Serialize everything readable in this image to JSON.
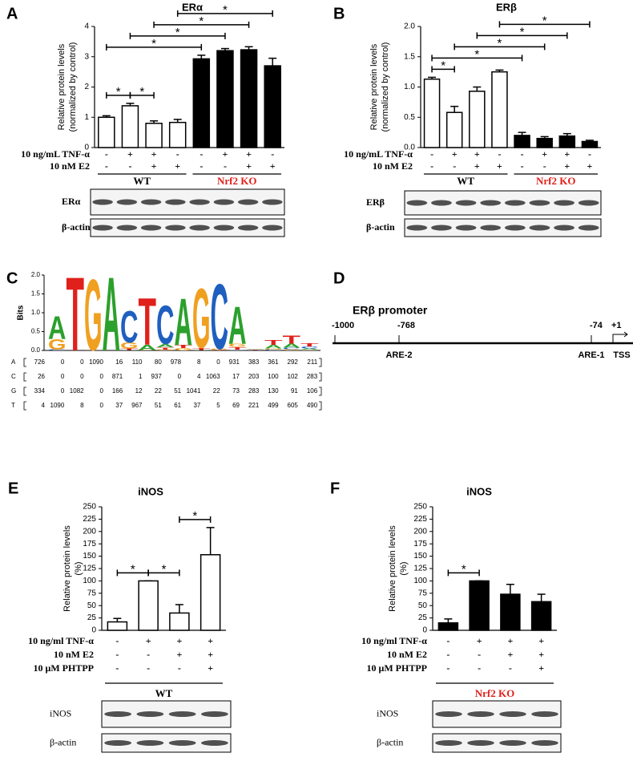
{
  "chart_data": [
    {
      "type": "bar",
      "panel": "A",
      "title": "ERα",
      "ylabel": [
        "Relative protein levels",
        "(normalized by control)"
      ],
      "ylim": [
        0,
        4
      ],
      "yticks": [
        0,
        1,
        2,
        3,
        4
      ],
      "values": [
        1.0,
        1.38,
        0.8,
        0.83,
        2.93,
        3.2,
        3.23,
        2.7
      ],
      "errors": [
        0.05,
        0.08,
        0.08,
        0.1,
        0.12,
        0.07,
        0.1,
        0.25
      ],
      "colors": [
        "#ffffff",
        "#ffffff",
        "#ffffff",
        "#ffffff",
        "#000000",
        "#000000",
        "#000000",
        "#000000"
      ],
      "treatments": [
        {
          "label": "10 ng/mL TNF-α",
          "signs": [
            "-",
            "+",
            "+",
            "-",
            "-",
            "+",
            "+",
            "-"
          ]
        },
        {
          "label": "10 nM E2",
          "signs": [
            "-",
            "-",
            "+",
            "+",
            "-",
            "-",
            "+",
            "+"
          ]
        }
      ],
      "groups": [
        {
          "label": "WT",
          "color": "#000000"
        },
        {
          "label": "Nrf2 KO",
          "color": "#e0201b"
        }
      ],
      "significance": [
        {
          "bars": [
            0,
            1
          ],
          "label": "*"
        },
        {
          "bars": [
            1,
            2
          ],
          "label": "*"
        },
        {
          "bars": [
            0,
            4
          ],
          "label": "*"
        },
        {
          "bars": [
            1,
            5
          ],
          "label": "*"
        },
        {
          "bars": [
            2,
            6
          ],
          "label": "*"
        },
        {
          "bars": [
            3,
            7
          ],
          "label": "*"
        }
      ],
      "blots": [
        "ERα",
        "β-actin"
      ]
    },
    {
      "type": "bar",
      "panel": "B",
      "title": "ERβ",
      "ylabel": [
        "Relative protein levels",
        "(normalized by control)"
      ],
      "ylim": [
        0,
        2
      ],
      "yticks": [
        {
          "value": 0,
          "label": "0.0"
        },
        0.5,
        {
          "value": 1,
          "label": "1.0"
        },
        1.5,
        {
          "value": 2,
          "label": "2.0"
        }
      ],
      "values": [
        1.13,
        0.58,
        0.93,
        1.25,
        0.2,
        0.15,
        0.19,
        0.1
      ],
      "errors": [
        0.03,
        0.1,
        0.07,
        0.03,
        0.05,
        0.03,
        0.04,
        0.02
      ],
      "colors": [
        "#ffffff",
        "#ffffff",
        "#ffffff",
        "#ffffff",
        "#000000",
        "#000000",
        "#000000",
        "#000000"
      ],
      "treatments": [
        {
          "label": "10 ng/mL TNF-α",
          "signs": [
            "-",
            "+",
            "+",
            "-",
            "-",
            "+",
            "+",
            "-"
          ]
        },
        {
          "label": "10 nM E2",
          "signs": [
            "-",
            "-",
            "+",
            "+",
            "-",
            "-",
            "+",
            "+"
          ]
        }
      ],
      "groups": [
        {
          "label": "WT",
          "color": "#000000"
        },
        {
          "label": "Nrf2 KO",
          "color": "#e0201b"
        }
      ],
      "significance": [
        {
          "bars": [
            0,
            1
          ],
          "label": "*"
        },
        {
          "bars": [
            0,
            4
          ],
          "label": "*"
        },
        {
          "bars": [
            1,
            5
          ],
          "label": "*"
        },
        {
          "bars": [
            2,
            6
          ],
          "label": "*"
        },
        {
          "bars": [
            3,
            7
          ],
          "label": "*"
        }
      ],
      "blots": [
        "ERβ",
        "β-actin"
      ]
    },
    {
      "type": "bar",
      "panel": "E",
      "title": "iNOS",
      "ylabel": [
        "Relative protein levels",
        "(%)"
      ],
      "ylim": [
        0,
        250
      ],
      "yticks": [
        0,
        25,
        50,
        75,
        100,
        125,
        150,
        175,
        200,
        225,
        250
      ],
      "values": [
        17,
        100,
        35,
        153
      ],
      "errors": [
        7,
        0,
        17,
        55
      ],
      "colors": [
        "#ffffff",
        "#ffffff",
        "#ffffff",
        "#ffffff"
      ],
      "treatments": [
        {
          "label": "10 ng/ml TNF-α",
          "signs": [
            "-",
            "+",
            "+",
            "+"
          ]
        },
        {
          "label": "10 nM E2",
          "signs": [
            "-",
            "-",
            "+",
            "+"
          ]
        },
        {
          "label": "10 μM PHTPP",
          "signs": [
            "-",
            "-",
            "-",
            "+"
          ]
        }
      ],
      "groups": [
        {
          "label": "WT",
          "color": "#000000"
        }
      ],
      "significance": [
        {
          "bars": [
            0,
            1
          ],
          "label": "*"
        },
        {
          "bars": [
            1,
            2
          ],
          "label": "*"
        },
        {
          "bars": [
            2,
            3
          ],
          "label": "*"
        }
      ],
      "blots": [
        "iNOS",
        "β-actin"
      ]
    },
    {
      "type": "bar",
      "panel": "F",
      "title": "iNOS",
      "ylabel": [
        "Relative protein levels",
        "(%)"
      ],
      "ylim": [
        0,
        250
      ],
      "yticks": [
        0,
        25,
        50,
        75,
        100,
        125,
        150,
        175,
        200,
        225,
        250
      ],
      "values": [
        15,
        100,
        73,
        58
      ],
      "errors": [
        8,
        0,
        20,
        15
      ],
      "colors": [
        "#000000",
        "#000000",
        "#000000",
        "#000000"
      ],
      "treatments": [
        {
          "label": "10 ng/ml TNF-α",
          "signs": [
            "-",
            "+",
            "+",
            "+"
          ]
        },
        {
          "label": "10 nM E2",
          "signs": [
            "-",
            "-",
            "+",
            "+"
          ]
        },
        {
          "label": "10 μM PHTPP",
          "signs": [
            "-",
            "-",
            "-",
            "+"
          ]
        }
      ],
      "groups": [
        {
          "label": "Nrf2 KO",
          "color": "#e0201b"
        }
      ],
      "significance": [
        {
          "bars": [
            0,
            1
          ],
          "label": "*"
        }
      ],
      "blots": [
        "iNOS",
        "β-actin"
      ]
    }
  ],
  "motif": {
    "panel": "C",
    "ylabel": "Bits",
    "yticks": [
      {
        "value": 0,
        "label": "0.0"
      },
      0.5,
      {
        "value": 1,
        "label": "1.0"
      },
      1.5,
      {
        "value": 2,
        "label": "2.0"
      }
    ],
    "rows": [
      {
        "base": "A",
        "color": "#2ca02c",
        "counts": [
          726,
          0,
          0,
          1090,
          16,
          110,
          80,
          978,
          8,
          0,
          931,
          383,
          361,
          292,
          211
        ]
      },
      {
        "base": "C",
        "color": "#1f5fbf",
        "counts": [
          26,
          0,
          0,
          0,
          871,
          1,
          937,
          0,
          4,
          1063,
          17,
          203,
          100,
          102,
          283
        ]
      },
      {
        "base": "G",
        "color": "#f0a020",
        "counts": [
          334,
          0,
          1082,
          0,
          166,
          12,
          22,
          51,
          1041,
          22,
          73,
          283,
          130,
          91,
          106
        ]
      },
      {
        "base": "T",
        "color": "#e0201b",
        "counts": [
          4,
          1090,
          8,
          0,
          37,
          967,
          51,
          61,
          37,
          5,
          69,
          221,
          499,
          605,
          490
        ]
      }
    ]
  },
  "promoter": {
    "panel": "D",
    "title": "ERβ promoter",
    "positions": [
      "-1000",
      "-768",
      "-74",
      "+1"
    ],
    "elements": [
      "ARE-2",
      "ARE-1",
      "TSS"
    ]
  }
}
